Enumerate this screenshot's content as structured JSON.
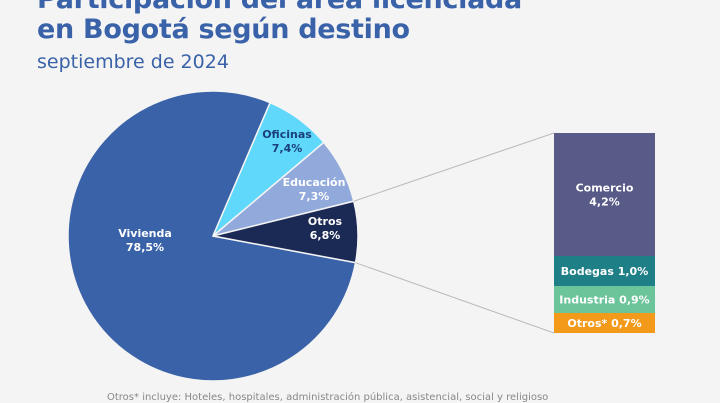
{
  "title_line1": "Participación del área licenciada",
  "title_line2": "en Bogotá según destino",
  "subtitle": "septiembre de 2024",
  "footnote": "Otros* incluye: Hoteles, hospitales, administración pública, asistencial, social y religioso",
  "chart_data": {
    "type": "pie",
    "title": "Participación del área licenciada en Bogotá según destino",
    "subtitle": "septiembre de 2024",
    "slices": [
      {
        "name": "Vivienda",
        "value": 78.5,
        "label": "78,5%",
        "color": "#3a62a8",
        "text_color": "#ffffff"
      },
      {
        "name": "Oficinas",
        "value": 7.4,
        "label": "7,4%",
        "color": "#5fd8fb",
        "text_color": "#1b3f7a"
      },
      {
        "name": "Educación",
        "value": 7.3,
        "label": "7,3%",
        "color": "#91aadb",
        "text_color": "#ffffff"
      },
      {
        "name": "Otros",
        "value": 6.8,
        "label": "6,8%",
        "color": "#1b2a55",
        "text_color": "#ffffff"
      }
    ],
    "breakdown_of": "Otros",
    "breakdown": [
      {
        "name": "Comercio",
        "value": 4.2,
        "label": "4,2%",
        "color": "#585a87"
      },
      {
        "name": "Bodegas",
        "value": 1.0,
        "label": "1,0%",
        "color": "#1f7f87"
      },
      {
        "name": "Industria",
        "value": 0.9,
        "label": "0,9%",
        "color": "#6cc49a"
      },
      {
        "name": "Otros*",
        "value": 0.7,
        "label": "0,7%",
        "color": "#f39a1b"
      }
    ]
  }
}
